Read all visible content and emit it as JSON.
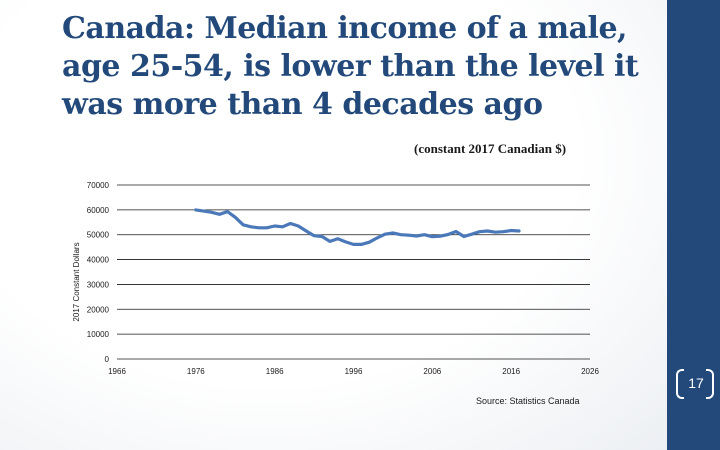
{
  "slide": {
    "title": "Canada:  Median income of a male, age 25-54, is lower than the level it was more than 4 decades ago",
    "subtitle": "(constant 2017 Canadian $)",
    "source": "Source: Statistics Canada",
    "page_number": "17",
    "colors": {
      "title": "#22497a",
      "side_band": "#22497a",
      "line": "#4a78b8",
      "gridline": "#1a1a1a"
    }
  },
  "chart_data": {
    "type": "line",
    "title": "",
    "xlabel": "",
    "ylabel": "2017 Constant Dollars",
    "xlim": [
      1966,
      2026
    ],
    "ylim": [
      0,
      70000
    ],
    "x_ticks": [
      "1966",
      "1976",
      "1986",
      "1996",
      "2006",
      "2016",
      "2026"
    ],
    "y_ticks": [
      "0",
      "10000",
      "20000",
      "30000",
      "40000",
      "50000",
      "60000",
      "70000"
    ],
    "grid": true,
    "legend": "none",
    "series": [
      {
        "x": [
          1976,
          1977,
          1978,
          1979,
          1980,
          1981,
          1982,
          1983,
          1984,
          1985,
          1986,
          1987,
          1988,
          1989,
          1990,
          1991,
          1992,
          1993,
          1994,
          1995,
          1996,
          1997,
          1998,
          1999,
          2000,
          2001,
          2002,
          2003,
          2004,
          2005,
          2006,
          2007,
          2008,
          2009,
          2010,
          2011,
          2012,
          2013,
          2014,
          2015,
          2016,
          2017
        ],
        "values": [
          60000,
          59500,
          59000,
          58200,
          59300,
          57000,
          54000,
          53200,
          52800,
          52800,
          53500,
          53200,
          54500,
          53500,
          51500,
          49600,
          49300,
          47300,
          48400,
          47100,
          46100,
          46100,
          47000,
          48700,
          50200,
          50700,
          50000,
          49800,
          49500,
          50000,
          49200,
          49400,
          50100,
          51300,
          49300,
          50200,
          51200,
          51500,
          51000,
          51200,
          51700,
          51500
        ]
      }
    ]
  }
}
